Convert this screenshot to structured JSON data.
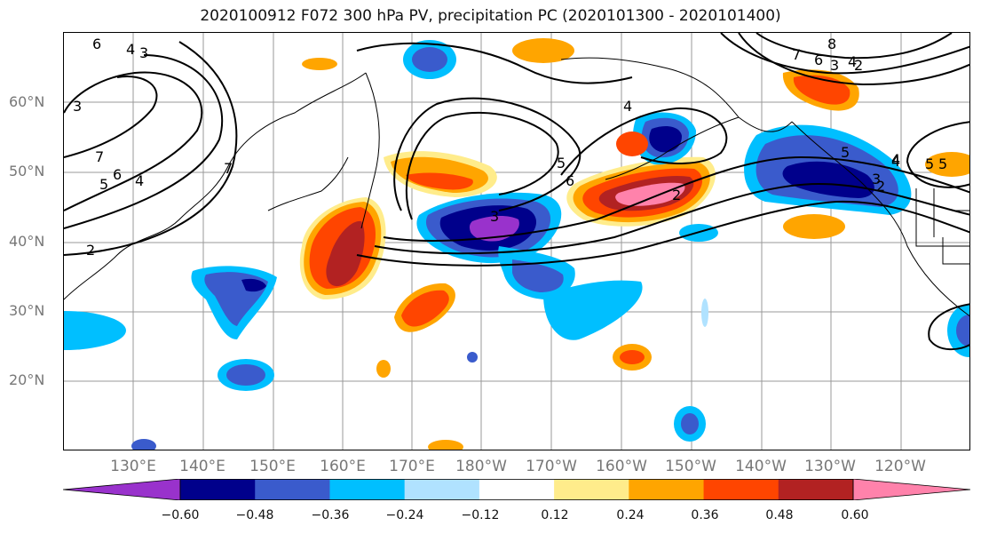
{
  "title": "2020100912 F072 300 hPa PV, precipitation PC (2020101300 - 2020101400)",
  "lat_labels": [
    "60°N",
    "50°N",
    "40°N",
    "30°N",
    "20°N"
  ],
  "lon_labels": [
    "130°E",
    "140°E",
    "150°E",
    "160°E",
    "170°E",
    "180°W",
    "170°W",
    "160°W",
    "150°W",
    "140°W",
    "130°W",
    "120°W"
  ],
  "colorbar": {
    "ticks": [
      "−0.60",
      "−0.48",
      "−0.36",
      "−0.24",
      "−0.12",
      "0.12",
      "0.24",
      "0.36",
      "0.48",
      "0.60"
    ],
    "colors": [
      "#9932cc",
      "#00008b",
      "#3a5bcc",
      "#00bfff",
      "#b0e2ff",
      "#ffffff",
      "#ffec8b",
      "#ffa500",
      "#ff4500",
      "#b22222",
      "#ff82ab"
    ]
  },
  "contour_labels": [
    "6",
    "4",
    "3",
    "7",
    "6",
    "5",
    "4",
    "7",
    "2",
    "3",
    "4",
    "5",
    "6",
    "2",
    "3",
    "5",
    "4",
    "5",
    "7",
    "8",
    "6",
    "4",
    "3",
    "2",
    "4",
    "5",
    "3",
    "2"
  ]
}
